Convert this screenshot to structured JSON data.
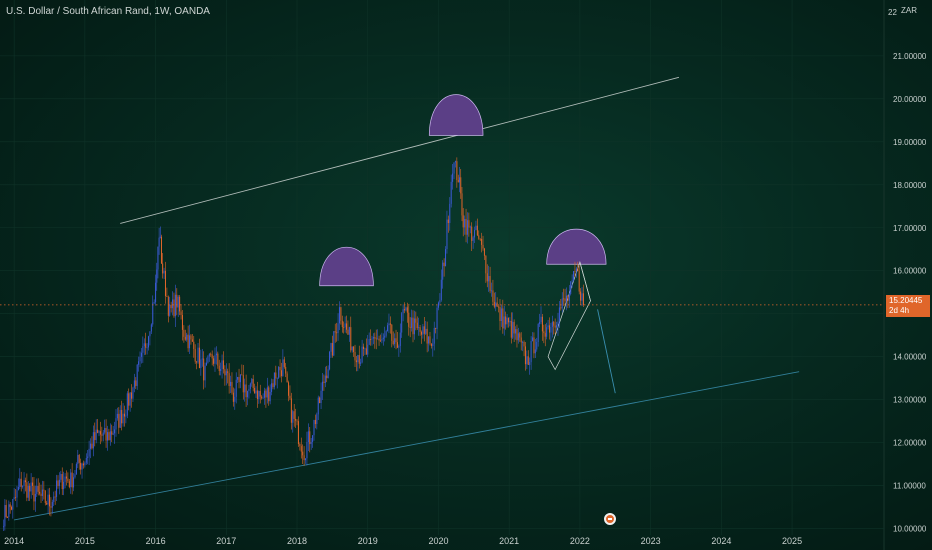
{
  "header": {
    "title": "U.S. Dollar / South African Rand, 1W, OANDA",
    "unit": "ZAR",
    "top_tick": "22"
  },
  "price_badge": {
    "price": "15.20445",
    "countdown": "2d 4h"
  },
  "colors": {
    "up": "#3b5bd6",
    "down": "#e0662a",
    "trendline_top": "#cfd6d4",
    "trendline_bottom": "#3a8fb0",
    "dome": "#5b3f86",
    "price_line": "#e0662a"
  },
  "chart_data": {
    "type": "line",
    "title": "U.S. Dollar / South African Rand, 1W, OANDA",
    "xlabel": "",
    "ylabel": "",
    "xlim": [
      2013.8,
      2026.3
    ],
    "ylim": [
      9.85,
      22.3
    ],
    "y_ticks": [
      "10.00000",
      "11.00000",
      "12.00000",
      "13.00000",
      "14.00000",
      "15.00000",
      "16.00000",
      "17.00000",
      "18.00000",
      "19.00000",
      "20.00000",
      "21.00000"
    ],
    "x_ticks": [
      "2014",
      "2015",
      "2016",
      "2017",
      "2018",
      "2019",
      "2020",
      "2021",
      "2022",
      "2023",
      "2024",
      "2025"
    ],
    "series": [
      {
        "x": [
          2013.85,
          2014.0,
          2014.1,
          2014.2,
          2014.3,
          2014.4,
          2014.5,
          2014.6,
          2014.7,
          2014.8,
          2014.9,
          2015.0,
          2015.1,
          2015.2,
          2015.3,
          2015.4,
          2015.5,
          2015.6,
          2015.7,
          2015.8,
          2015.9,
          2016.0,
          2016.05,
          2016.1,
          2016.2,
          2016.3,
          2016.4,
          2016.5,
          2016.6,
          2016.7,
          2016.8,
          2016.9,
          2017.0,
          2017.1,
          2017.2,
          2017.3,
          2017.4,
          2017.5,
          2017.6,
          2017.7,
          2017.8,
          2017.9,
          2018.0,
          2018.1,
          2018.2,
          2018.3,
          2018.4,
          2018.5,
          2018.6,
          2018.7,
          2018.8,
          2018.9,
          2019.0,
          2019.1,
          2019.2,
          2019.3,
          2019.4,
          2019.5,
          2019.6,
          2019.7,
          2019.8,
          2019.9,
          2020.0,
          2020.1,
          2020.2,
          2020.28,
          2020.35,
          2020.45,
          2020.55,
          2020.65,
          2020.75,
          2020.85,
          2020.95,
          2021.05,
          2021.15,
          2021.25,
          2021.35,
          2021.45,
          2021.55,
          2021.65,
          2021.75,
          2021.85,
          2021.95,
          2022.05
        ],
        "y": [
          10.3,
          10.6,
          11.1,
          10.9,
          10.8,
          10.7,
          10.6,
          10.9,
          11.2,
          11.1,
          11.5,
          11.6,
          12.0,
          12.2,
          12.1,
          12.3,
          12.6,
          12.9,
          13.4,
          13.9,
          14.6,
          15.6,
          16.9,
          16.0,
          15.0,
          15.3,
          14.6,
          14.3,
          14.0,
          13.6,
          14.0,
          13.8,
          13.6,
          13.1,
          13.4,
          13.2,
          13.3,
          13.0,
          13.2,
          13.6,
          13.8,
          12.8,
          12.3,
          11.8,
          12.2,
          12.8,
          13.6,
          14.2,
          15.1,
          14.6,
          14.2,
          14.0,
          14.1,
          14.5,
          14.3,
          14.6,
          14.1,
          15.0,
          14.8,
          14.6,
          14.5,
          14.3,
          15.1,
          16.6,
          18.5,
          18.2,
          17.2,
          16.9,
          16.8,
          16.3,
          15.5,
          15.0,
          14.8,
          14.6,
          14.3,
          13.9,
          14.3,
          14.7,
          14.7,
          14.9,
          15.2,
          15.4,
          16.0,
          15.2
        ]
      }
    ],
    "annotations": [
      {
        "type": "trendline",
        "x1": 2015.5,
        "y1": 17.1,
        "x2": 2023.4,
        "y2": 20.5
      },
      {
        "type": "trendline",
        "x1": 2014.0,
        "y1": 10.2,
        "x2": 2025.1,
        "y2": 13.65
      },
      {
        "type": "dome",
        "x": 2018.7,
        "y": 15.65,
        "half_width": 0.38,
        "height": 0.9
      },
      {
        "type": "dome",
        "x": 2020.25,
        "y": 19.15,
        "half_width": 0.38,
        "height": 0.95
      },
      {
        "type": "dome",
        "x": 2021.95,
        "y": 16.15,
        "half_width": 0.42,
        "height": 0.82
      },
      {
        "type": "channel",
        "points": [
          [
            2021.55,
            14.0
          ],
          [
            2022.0,
            16.2
          ],
          [
            2022.15,
            15.3
          ],
          [
            2021.65,
            13.7
          ]
        ]
      },
      {
        "type": "projection",
        "x1": 2022.25,
        "y1": 15.1,
        "x2": 2022.5,
        "y2": 13.15
      }
    ],
    "current_price": 15.20445
  }
}
